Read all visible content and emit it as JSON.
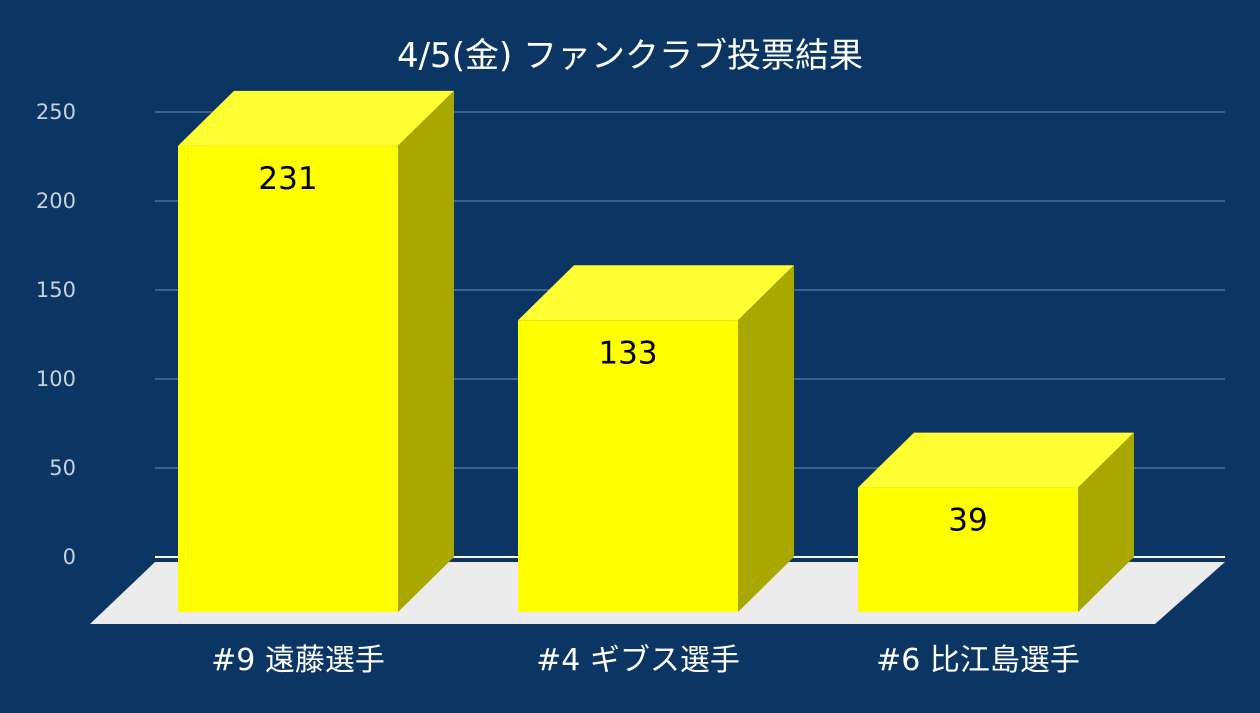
{
  "chart_data": {
    "type": "bar",
    "style": "3d",
    "title": "4/5(金)  ファンクラブ投票結果",
    "xlabel": "",
    "ylabel": "",
    "categories": [
      "#9 遠藤選手",
      "#4 ギブス選手",
      "#6 比江島選手"
    ],
    "values": [
      231,
      133,
      39
    ],
    "data_labels": [
      "231",
      "133",
      "39"
    ],
    "ylim": [
      0,
      250
    ],
    "yticks": [
      "0",
      "50",
      "100",
      "150",
      "200",
      "250"
    ],
    "grid": true,
    "legend": "none"
  },
  "colors": {
    "background": "#0b3563",
    "bar_front": "#ffff00",
    "bar_top": "#ffff33",
    "bar_side": "#a8a800",
    "floor": "#ececec",
    "gridline": "#5a7a9e",
    "title": "#ffffff",
    "tick_label": "#c8d0dc",
    "category_label": "#ffffff",
    "data_label": "#000000"
  }
}
